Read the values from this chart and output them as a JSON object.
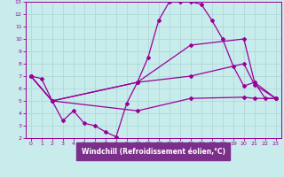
{
  "xlabel": "Windchill (Refroidissement éolien,°C)",
  "background_color": "#c8ecec",
  "axis_bg_color": "#7b2f8a",
  "grid_color": "#b0d8d8",
  "line_color": "#990099",
  "spine_color": "#7b2f8a",
  "tick_color": "#7b2f8a",
  "xlabel_color": "#ffffff",
  "xlabel_bg": "#7b2f8a",
  "xlim": [
    -0.5,
    23.5
  ],
  "ylim": [
    2,
    13
  ],
  "xticks": [
    0,
    1,
    2,
    3,
    4,
    5,
    6,
    7,
    8,
    9,
    10,
    11,
    12,
    13,
    14,
    15,
    16,
    17,
    18,
    19,
    20,
    21,
    22,
    23
  ],
  "yticks": [
    2,
    3,
    4,
    5,
    6,
    7,
    8,
    9,
    10,
    11,
    12,
    13
  ],
  "line1_x": [
    0,
    1,
    2,
    3,
    4,
    5,
    6,
    7,
    8,
    9,
    10,
    11,
    12,
    13,
    14,
    15,
    16,
    17,
    18,
    19,
    20,
    21,
    22,
    23
  ],
  "line1_y": [
    7.0,
    6.8,
    5.0,
    3.4,
    4.2,
    3.2,
    3.0,
    2.5,
    2.1,
    4.8,
    6.5,
    8.5,
    11.5,
    13.0,
    13.0,
    13.0,
    12.8,
    11.5,
    10.0,
    7.8,
    6.2,
    6.5,
    5.2,
    5.2
  ],
  "line2_x": [
    0,
    2,
    10,
    15,
    20,
    21,
    23
  ],
  "line2_y": [
    7.0,
    5.0,
    6.5,
    9.5,
    10.0,
    6.5,
    5.2
  ],
  "line3_x": [
    0,
    2,
    10,
    15,
    20,
    21,
    23
  ],
  "line3_y": [
    7.0,
    5.0,
    6.5,
    7.0,
    8.0,
    6.3,
    5.2
  ],
  "line4_x": [
    0,
    2,
    10,
    15,
    20,
    21,
    23
  ],
  "line4_y": [
    7.0,
    5.0,
    4.2,
    5.2,
    5.3,
    5.2,
    5.2
  ]
}
